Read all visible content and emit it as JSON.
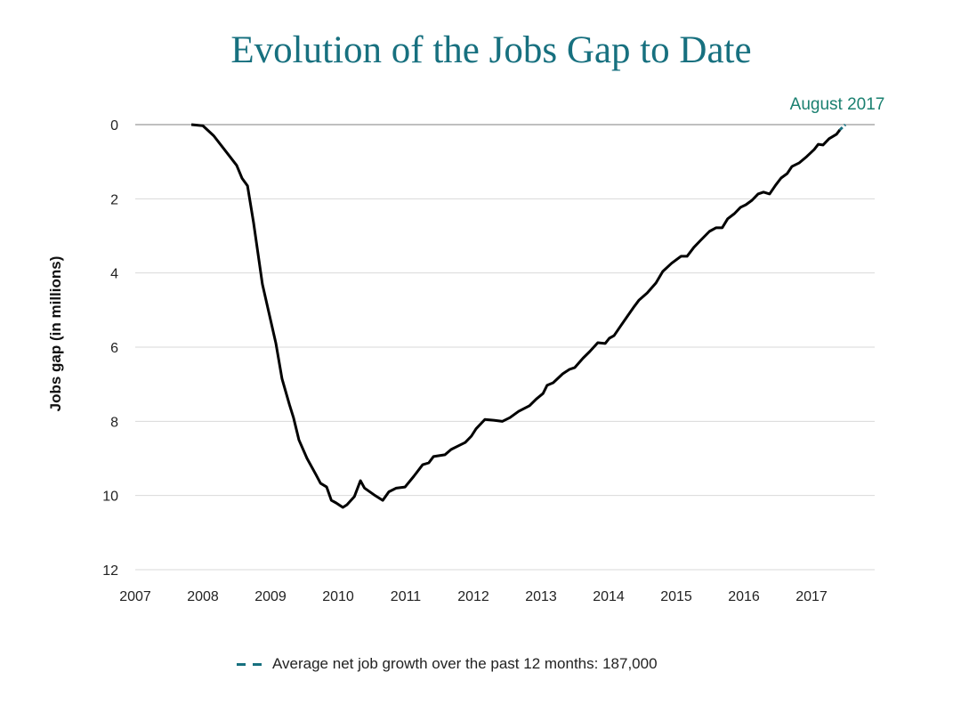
{
  "chart_data": {
    "type": "line",
    "title": "Evolution of the Jobs Gap to Date",
    "xlabel": "",
    "ylabel": "Jobs gap (in millions)",
    "xlim": [
      2007,
      2017.9
    ],
    "ylim": [
      0,
      12
    ],
    "y_inverted": true,
    "x_ticks": [
      2007,
      2008,
      2009,
      2010,
      2011,
      2012,
      2013,
      2014,
      2015,
      2016,
      2017
    ],
    "y_ticks": [
      0,
      2,
      4,
      6,
      8,
      10,
      12
    ],
    "grid": true,
    "annotation": "August 2017",
    "legend": {
      "label": "Average net job growth over the past 12 months: 187,000",
      "placement": "bottom"
    },
    "colors": {
      "title": "#17707f",
      "annotation": "#1a8070",
      "series": "#000000",
      "projection": "#17707f"
    },
    "series": [
      {
        "name": "Jobs gap",
        "x": [
          2007.83,
          2008.0,
          2008.16,
          2008.36,
          2008.5,
          2008.58,
          2008.66,
          2008.75,
          2008.88,
          2009.08,
          2009.17,
          2009.28,
          2009.34,
          2009.42,
          2009.54,
          2009.67,
          2009.74,
          2009.83,
          2009.9,
          2009.97,
          2010.07,
          2010.13,
          2010.24,
          2010.33,
          2010.39,
          2010.53,
          2010.66,
          2010.75,
          2010.86,
          2010.99,
          2011.12,
          2011.25,
          2011.34,
          2011.41,
          2011.58,
          2011.67,
          2011.78,
          2011.88,
          2011.97,
          2012.04,
          2012.17,
          2012.3,
          2012.43,
          2012.54,
          2012.67,
          2012.83,
          2012.93,
          2013.03,
          2013.09,
          2013.18,
          2013.32,
          2013.42,
          2013.5,
          2013.62,
          2013.72,
          2013.84,
          2013.95,
          2014.01,
          2014.08,
          2014.17,
          2014.28,
          2014.38,
          2014.45,
          2014.57,
          2014.7,
          2014.8,
          2014.93,
          2015.07,
          2015.16,
          2015.26,
          2015.36,
          2015.49,
          2015.59,
          2015.68,
          2015.76,
          2015.86,
          2015.95,
          2016.03,
          2016.12,
          2016.21,
          2016.29,
          2016.38,
          2016.47,
          2016.55,
          2016.64,
          2016.71,
          2016.82,
          2016.93,
          2017.04,
          2017.1,
          2017.17,
          2017.26,
          2017.37,
          2017.42
        ],
        "y": [
          0,
          0.03,
          0.3,
          0.77,
          1.1,
          1.45,
          1.65,
          2.65,
          4.3,
          5.9,
          6.85,
          7.55,
          7.9,
          8.5,
          9.0,
          9.43,
          9.67,
          9.77,
          10.13,
          10.2,
          10.32,
          10.25,
          10.03,
          9.6,
          9.8,
          9.98,
          10.13,
          9.9,
          9.8,
          9.77,
          9.48,
          9.17,
          9.12,
          8.95,
          8.9,
          8.76,
          8.66,
          8.57,
          8.4,
          8.2,
          7.95,
          7.97,
          8.0,
          7.9,
          7.73,
          7.58,
          7.4,
          7.25,
          7.03,
          6.96,
          6.72,
          6.6,
          6.55,
          6.3,
          6.12,
          5.88,
          5.9,
          5.76,
          5.69,
          5.45,
          5.16,
          4.9,
          4.73,
          4.54,
          4.27,
          3.96,
          3.74,
          3.55,
          3.55,
          3.31,
          3.12,
          2.88,
          2.78,
          2.78,
          2.54,
          2.4,
          2.23,
          2.16,
          2.04,
          1.87,
          1.82,
          1.87,
          1.63,
          1.44,
          1.32,
          1.13,
          1.03,
          0.86,
          0.67,
          0.53,
          0.55,
          0.38,
          0.26,
          0.14
        ]
      },
      {
        "name": "Projection",
        "x": [
          2017.42,
          2017.5
        ],
        "y": [
          0.14,
          0
        ],
        "style": "dashed"
      }
    ]
  }
}
